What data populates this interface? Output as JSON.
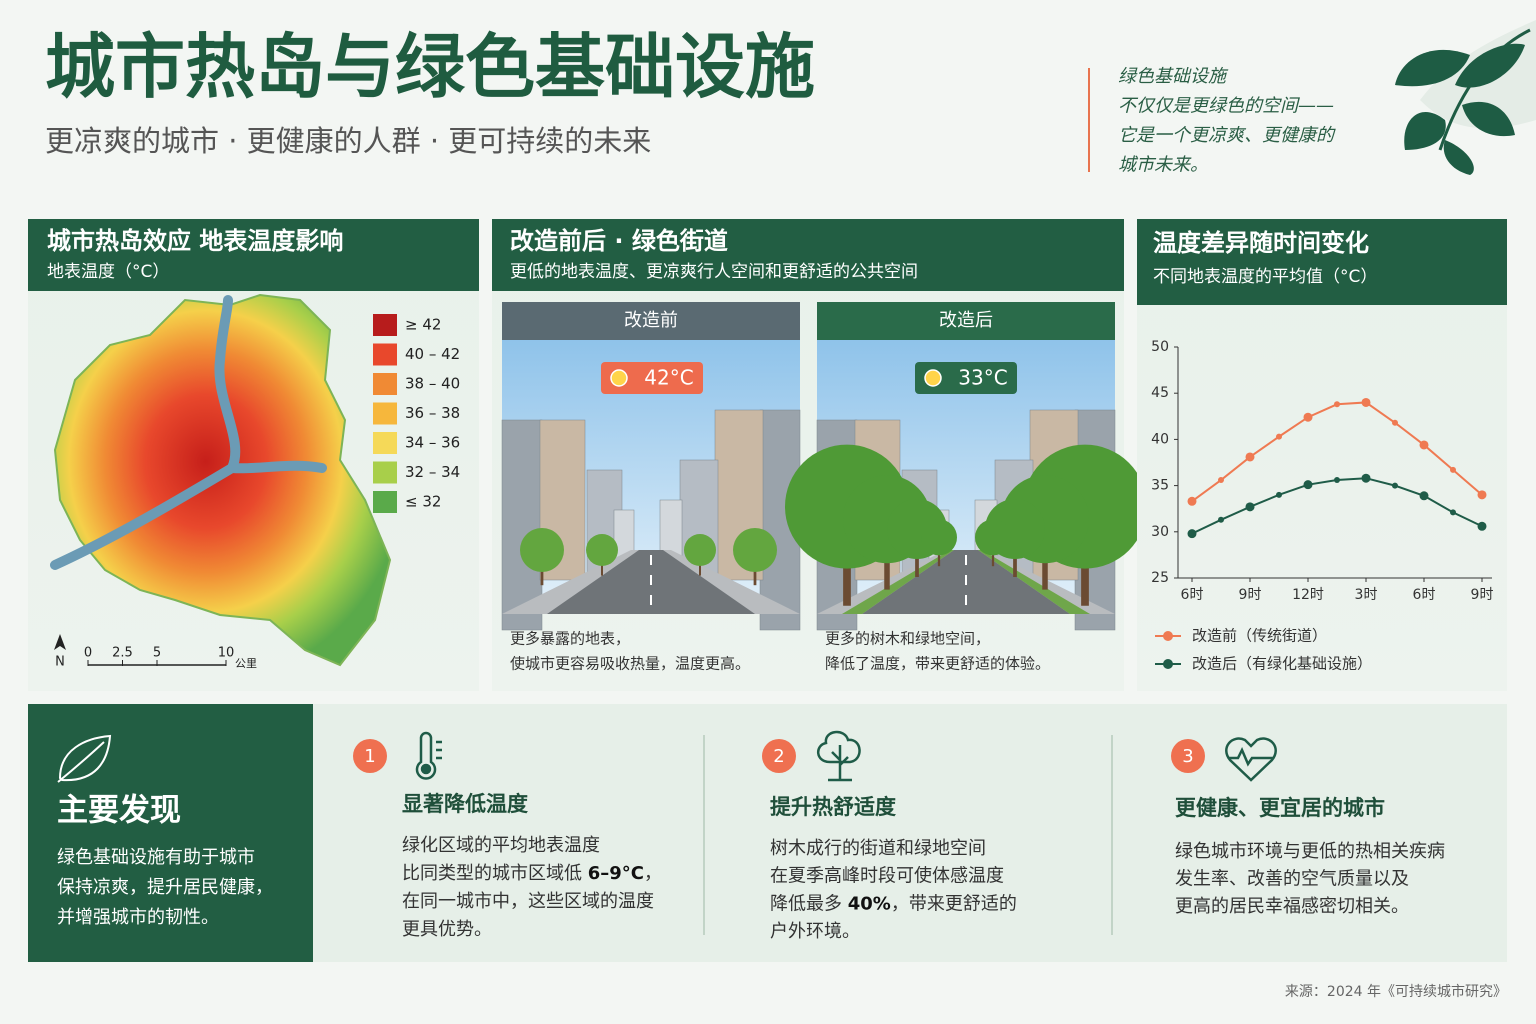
{
  "header": {
    "title": "城市热岛与绿色基础设施",
    "subtitle": "更凉爽的城市 · 更健康的人群 · 更可持续的未来",
    "quote": [
      "绿色基础设施",
      "不仅仅是更绿色的空间——",
      "它是一个更凉爽、更健康的",
      "城市未来。"
    ]
  },
  "map_panel": {
    "title": "城市热岛效应  地表温度影响",
    "subtitle": "地表温度（°C）",
    "legend": [
      {
        "label": "≥ 42",
        "color": "#b71c1c"
      },
      {
        "label": "40 – 42",
        "color": "#e8482c"
      },
      {
        "label": "38 – 40",
        "color": "#f08a34"
      },
      {
        "label": "36 – 38",
        "color": "#f6b73c"
      },
      {
        "label": "34 – 36",
        "color": "#f5d958"
      },
      {
        "label": "32 – 34",
        "color": "#a8cf4a"
      },
      {
        "label": "≤ 32",
        "color": "#5aaa4a"
      }
    ],
    "north": "N",
    "scale": [
      0,
      2.5,
      5,
      10
    ],
    "scale_unit": "公里"
  },
  "street_panel": {
    "title": "改造前后 · 绿色街道",
    "subtitle": "更低的地表温度、更凉爽行人空间和更舒适的公共空间",
    "before": {
      "label": "改造前",
      "temp": "42°C",
      "caption": [
        "更多暴露的地表，",
        "使城市更容易吸收热量，温度更高。"
      ]
    },
    "after": {
      "label": "改造后",
      "temp": "33°C",
      "caption": [
        "更多的树木和绿地空间，",
        "降低了温度，带来更舒适的体验。"
      ]
    }
  },
  "chart_data": {
    "type": "line",
    "title": "温度差异随时间变化",
    "subtitle": "不同地表温度的平均值（°C）",
    "categories": [
      "6时",
      null,
      "9时",
      null,
      "12时",
      null,
      "3时",
      null,
      "6时",
      null,
      "9时"
    ],
    "series": [
      {
        "name": "改造前（传统街道）",
        "color": "#ef7a52",
        "values": [
          33.3,
          35.6,
          38.1,
          40.3,
          42.4,
          43.8,
          44.0,
          41.8,
          39.4,
          36.7,
          34.0
        ]
      },
      {
        "name": "改造后（有绿化基础设施）",
        "color": "#1f5c48",
        "values": [
          29.8,
          31.3,
          32.7,
          34.0,
          35.1,
          35.6,
          35.8,
          35.0,
          33.9,
          32.1,
          30.6
        ]
      }
    ],
    "ylim": [
      25,
      50
    ],
    "yticks": [
      25,
      30,
      35,
      40,
      45,
      50
    ]
  },
  "findings": {
    "title": "主要发现",
    "lines": [
      "绿色基础设施有助于城市",
      "保持凉爽，提升居民健康，",
      "并增强城市的韧性。"
    ],
    "items": [
      {
        "number": 1,
        "title": "显著降低温度",
        "lines": [
          "绿化区域的平均地表温度",
          [
            {
              "t": "比同类型的城市区域低 "
            },
            {
              "t": "6–9°C",
              "b": true
            },
            {
              "t": "，"
            }
          ],
          "在同一城市中，这些区域的温度",
          "更具优势。"
        ]
      },
      {
        "number": 2,
        "title": "提升热舒适度",
        "lines": [
          "树木成行的街道和绿地空间",
          "在夏季高峰时段可使体感温度",
          [
            {
              "t": "降低最多 "
            },
            {
              "t": "40%",
              "b": true
            },
            {
              "t": "，带来更舒适的"
            }
          ],
          "户外环境。"
        ]
      },
      {
        "number": 3,
        "title": "更健康、更宜居的城市",
        "lines": [
          "绿色城市环境与更低的热相关疾病",
          "发生率、改善的空气质量以及",
          "更高的居民幸福感密切相关。"
        ]
      }
    ]
  },
  "source": "来源：2024 年《可持续城市研究》"
}
